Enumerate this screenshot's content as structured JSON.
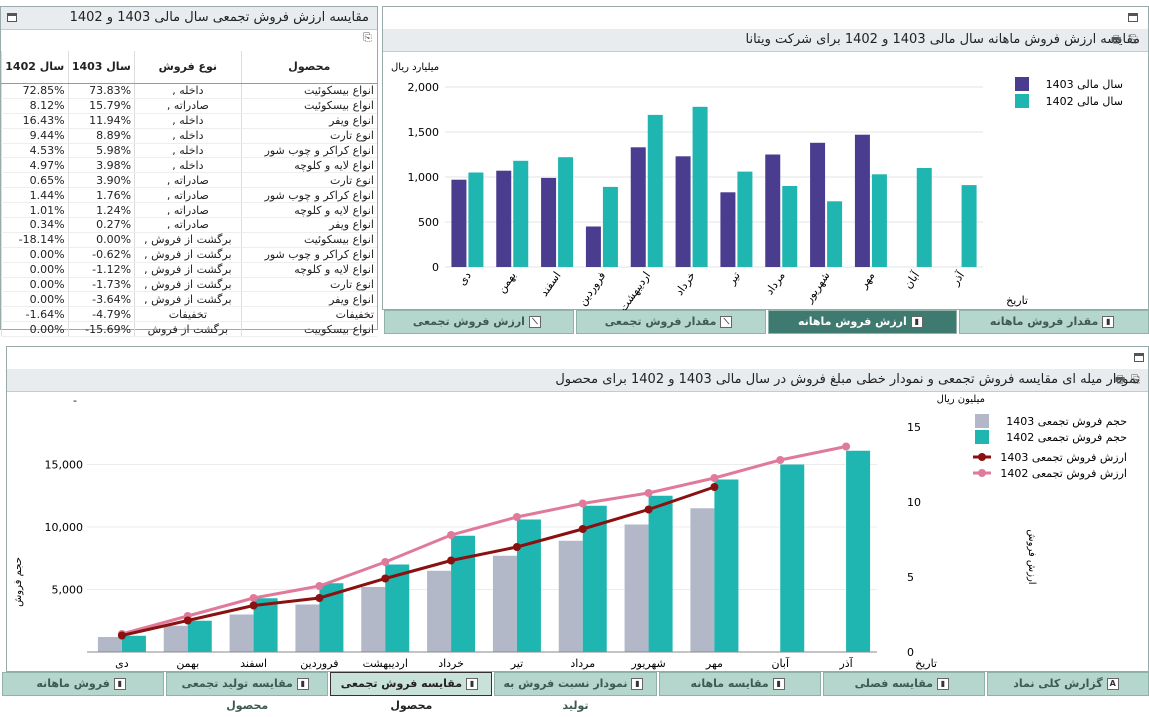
{
  "table_panel": {
    "title": "مقایسه ارزش فروش تجمعی سال مالی 1403 و 1402",
    "headers": {
      "product": "محصول",
      "type": "نوع فروش",
      "y1403": "سال 1403",
      "y1402": "سال 1402"
    },
    "rows": [
      {
        "product": "انواع بیسکوئیت",
        "type": "داخله ,",
        "y1403": "73.83%",
        "y1402": "72.85%"
      },
      {
        "product": "انواع بیسکوئیت",
        "type": "صادراته ,",
        "y1403": "15.79%",
        "y1402": "8.12%"
      },
      {
        "product": "انواع ویفر",
        "type": "داخله ,",
        "y1403": "11.94%",
        "y1402": "16.43%"
      },
      {
        "product": "انوع تارت",
        "type": "داخله ,",
        "y1403": "8.89%",
        "y1402": "9.44%"
      },
      {
        "product": "انواع کراکر و چوب شور",
        "type": "داخله ,",
        "y1403": "5.98%",
        "y1402": "4.53%"
      },
      {
        "product": "انواع لایه و کلوچه",
        "type": "داخله ,",
        "y1403": "3.98%",
        "y1402": "4.97%"
      },
      {
        "product": "انوع تارت",
        "type": "صادراته ,",
        "y1403": "3.90%",
        "y1402": "0.65%"
      },
      {
        "product": "انواع کراکر و چوب شور",
        "type": "صادراته ,",
        "y1403": "1.76%",
        "y1402": "1.44%"
      },
      {
        "product": "انواع لایه و کلوچه",
        "type": "صادراته ,",
        "y1403": "1.24%",
        "y1402": "1.01%"
      },
      {
        "product": "انواع ویفر",
        "type": "صادراته ,",
        "y1403": "0.27%",
        "y1402": "0.34%"
      },
      {
        "product": "انواع بیسکوئیت",
        "type": "برگشت از فروش ,",
        "y1403": "0.00%",
        "y1402": "-18.14%"
      },
      {
        "product": "انواع کراکر و چوب شور",
        "type": "برگشت از فروش ,",
        "y1403": "-0.62%",
        "y1402": "0.00%"
      },
      {
        "product": "انواع لایه و کلوچه",
        "type": "برگشت از فروش ,",
        "y1403": "-1.12%",
        "y1402": "0.00%"
      },
      {
        "product": "انوع تارت",
        "type": "برگشت از فروش ,",
        "y1403": "-1.73%",
        "y1402": "0.00%"
      },
      {
        "product": "انواع ویفر",
        "type": "برگشت از فروش ,",
        "y1403": "-3.64%",
        "y1402": "0.00%"
      },
      {
        "product": "تخفیفات",
        "type": "تخفیفات",
        "y1403": "-4.79%",
        "y1402": "-1.64%"
      },
      {
        "product": "انواع بیسکوییت",
        "type": "برگشت از فروش",
        "y1403": "-15.69%",
        "y1402": "0.00%"
      }
    ]
  },
  "top_tabs": [
    {
      "label": "مقدار فروش ماهانه",
      "icon": "bar-chart-icon"
    },
    {
      "label": "ارزش فروش ماهانه",
      "icon": "bar-chart-icon"
    },
    {
      "label": "مقدار فروش تجمعی",
      "icon": "line-chart-icon"
    },
    {
      "label": "ارزش فروش تجمعی",
      "icon": "line-chart-icon"
    }
  ],
  "bottom_tabs": [
    {
      "label": "گزارش کلی نماد",
      "icon": "text-icon"
    },
    {
      "label": "مقایسه فصلی",
      "icon": "table-icon"
    },
    {
      "label": "مقایسه ماهانه",
      "icon": "table-icon"
    },
    {
      "label": "نمودار نسبت فروش به تولید",
      "icon": "table-icon"
    },
    {
      "label": "مقایسه فروش تجمعی محصول",
      "icon": "bar-chart-icon"
    },
    {
      "label": "مقایسه تولید تجمعی محصول",
      "icon": "table-icon"
    },
    {
      "label": "فروش ماهانه",
      "icon": "table-icon"
    }
  ],
  "colors": {
    "s1403": "#4a3d8f",
    "s1402": "#1fb5b0",
    "grey": "#b3b8c8",
    "line1403": "#8b1010",
    "line1402": "#e07a9a"
  },
  "chart_data": [
    {
      "type": "bar",
      "title": "مقایسه ارزش فروش ماهانه سال مالی 1403 و 1402 برای شرکت ویتانا",
      "ylabel": "میلیارد ریال",
      "xlabel": "تاریخ",
      "ylim": [
        0,
        2000
      ],
      "yticks": [
        "0",
        "500",
        "1,000",
        "1,500",
        "2,000"
      ],
      "legend": "right",
      "categories": [
        "دی",
        "بهمن",
        "اسفند",
        "فروردین",
        "اردیبهشت",
        "خرداد",
        "تیر",
        "مرداد",
        "شهریور",
        "مهر",
        "آبان",
        "آذر"
      ],
      "series": [
        {
          "name": "سال مالی 1403",
          "values": [
            970,
            1070,
            990,
            450,
            1330,
            1230,
            830,
            1250,
            1380,
            1470,
            null,
            null
          ]
        },
        {
          "name": "سال مالی 1402",
          "values": [
            1050,
            1180,
            1220,
            890,
            1690,
            1780,
            1060,
            900,
            730,
            1030,
            1100,
            910
          ]
        }
      ]
    },
    {
      "type": "bar",
      "title": "نمودار میله ای مقایسه فروش تجمعی و نمودار خطی مبلغ فروش در سال مالی 1403 و 1402 برای محصول",
      "ylabel": "حجم فروش",
      "y2label": "ارزش فروش",
      "y2unit": "میلیون ریال",
      "xlabel": "تاریخ",
      "ylim": [
        0,
        20000
      ],
      "yticks": [
        "5,000",
        "10,000",
        "15,000"
      ],
      "y2lim": [
        0,
        15
      ],
      "y2ticks": [
        "0",
        "5",
        "10",
        "15"
      ],
      "legend": "right",
      "categories": [
        "دی",
        "بهمن",
        "اسفند",
        "فروردین",
        "اردیبهشت",
        "خرداد",
        "تیر",
        "مرداد",
        "شهریور",
        "مهر",
        "آبان",
        "آذر"
      ],
      "bars": [
        {
          "name": "حجم فروش تجمعی 1403",
          "values": [
            1200,
            2100,
            3000,
            3800,
            5200,
            6500,
            7700,
            8900,
            10200,
            11500,
            null,
            null
          ]
        },
        {
          "name": "حجم فروش تجمعی 1402",
          "values": [
            1300,
            2500,
            4300,
            5500,
            7000,
            9300,
            10600,
            11700,
            12500,
            13800,
            15000,
            16100
          ]
        }
      ],
      "lines": [
        {
          "name": "ارزش فروش تجمعی 1403",
          "values": [
            1.1,
            2.1,
            3.1,
            3.6,
            4.9,
            6.1,
            7.0,
            8.2,
            9.5,
            11.0,
            null,
            null
          ]
        },
        {
          "name": "ارزش فروش تجمعی 1402",
          "values": [
            1.2,
            2.4,
            3.6,
            4.4,
            6.0,
            7.8,
            9.0,
            9.9,
            10.6,
            11.6,
            12.8,
            13.7
          ]
        }
      ]
    }
  ]
}
